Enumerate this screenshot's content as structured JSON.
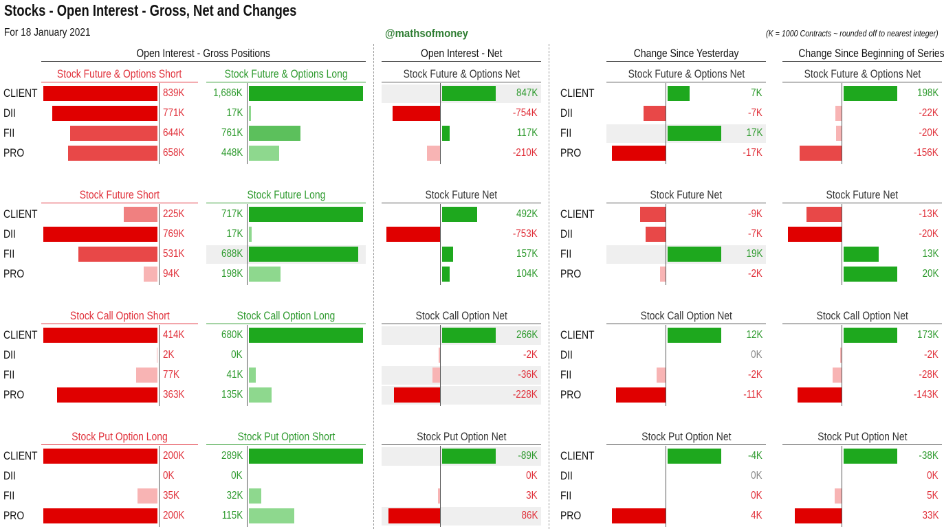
{
  "header": {
    "title": "Stocks - Open Interest - Gross, Net and Changes",
    "date": "For 18 January 2021",
    "brand": "@mathsofmoney",
    "note": "(K = 1000 Contracts ~ rounded off to nearest integer)"
  },
  "sections": {
    "gross": "Open Interest - Gross Positions",
    "net": "Open Interest - Net",
    "change_yesterday": "Change Since Yesterday",
    "change_series": "Change Since Beginning of Series"
  },
  "colors": {
    "red_strong": "#e00000",
    "red_mid": "#e84848",
    "red_light": "#f08080",
    "red_pale": "#f8b4b4",
    "green_strong": "#1ea81e",
    "green_mid": "#5cc05c",
    "green_light": "#8ed88e",
    "val_red": "#e0303a",
    "val_green": "#2e9a2e",
    "val_gray": "#888888"
  },
  "participants": [
    "CLIENT",
    "DII",
    "FII",
    "PRO"
  ],
  "chart_data": [
    {
      "type": "bar",
      "group": "Stock Future & Options",
      "categories": [
        "CLIENT",
        "DII",
        "FII",
        "PRO"
      ],
      "short_title": "Stock Future & Options Short",
      "short": [
        839,
        771,
        644,
        658
      ],
      "short_labels": [
        "839K",
        "771K",
        "644K",
        "658K"
      ],
      "long_title": "Stock Future & Options Long",
      "long": [
        1686,
        17,
        761,
        448
      ],
      "long_labels": [
        "1,686K",
        "17K",
        "761K",
        "448K"
      ],
      "net_title": "Stock Future & Options Net",
      "net": [
        847,
        -754,
        117,
        -210
      ],
      "net_labels": [
        "847K",
        "-754K",
        "117K",
        "-210K"
      ],
      "chg_title": "Stock Future & Options Net",
      "chg": [
        7,
        -7,
        17,
        -17
      ],
      "chg_labels": [
        "7K",
        "-7K",
        "17K",
        "-17K"
      ],
      "ser_title": "Stock Future & Options Net",
      "ser": [
        198,
        -22,
        -20,
        -156
      ],
      "ser_labels": [
        "198K",
        "-22K",
        "-20K",
        "-156K"
      ],
      "highlights": {
        "net": [
          0
        ],
        "chg": [
          2
        ],
        "ser": []
      }
    },
    {
      "type": "bar",
      "group": "Stock Future",
      "categories": [
        "CLIENT",
        "DII",
        "FII",
        "PRO"
      ],
      "short_title": "Stock Future Short",
      "short": [
        225,
        769,
        531,
        94
      ],
      "short_labels": [
        "225K",
        "769K",
        "531K",
        "94K"
      ],
      "long_title": "Stock Future Long",
      "long": [
        717,
        17,
        688,
        198
      ],
      "long_labels": [
        "717K",
        "17K",
        "688K",
        "198K"
      ],
      "net_title": "Stock Future Net",
      "net": [
        492,
        -753,
        157,
        104
      ],
      "net_labels": [
        "492K",
        "-753K",
        "157K",
        "104K"
      ],
      "chg_title": "Stock Future Net",
      "chg": [
        -9,
        -7,
        19,
        -2
      ],
      "chg_labels": [
        "-9K",
        "-7K",
        "19K",
        "-2K"
      ],
      "ser_title": "Stock Future Net",
      "ser": [
        -13,
        -20,
        13,
        20
      ],
      "ser_labels": [
        "-13K",
        "-20K",
        "13K",
        "20K"
      ],
      "highlights": {
        "long": [
          2
        ],
        "net": [],
        "chg": [
          2
        ],
        "ser": []
      }
    },
    {
      "type": "bar",
      "group": "Stock Call Option",
      "categories": [
        "CLIENT",
        "DII",
        "FII",
        "PRO"
      ],
      "short_title": "Stock Call Option Short",
      "short": [
        414,
        2,
        77,
        363
      ],
      "short_labels": [
        "414K",
        "2K",
        "77K",
        "363K"
      ],
      "long_title": "Stock Call Option Long",
      "long": [
        680,
        0,
        41,
        135
      ],
      "long_labels": [
        "680K",
        "0K",
        "41K",
        "135K"
      ],
      "net_title": "Stock Call Option Net",
      "net": [
        266,
        -2,
        -36,
        -228
      ],
      "net_labels": [
        "266K",
        "-2K",
        "-36K",
        "-228K"
      ],
      "chg_title": "Stock Call Option Net",
      "chg": [
        12,
        0,
        -2,
        -11
      ],
      "chg_labels": [
        "12K",
        "0K",
        "-2K",
        "-11K"
      ],
      "ser_title": "Stock Call Option Net",
      "ser": [
        173,
        -2,
        -28,
        -143
      ],
      "ser_labels": [
        "173K",
        "-2K",
        "-28K",
        "-143K"
      ],
      "highlights": {
        "net": [
          0,
          2,
          3
        ],
        "chg": [],
        "ser": []
      }
    },
    {
      "type": "bar",
      "group": "Stock Put Option",
      "categories": [
        "CLIENT",
        "DII",
        "FII",
        "PRO"
      ],
      "short_title": "Stock Put Option Long",
      "short": [
        200,
        0,
        35,
        200
      ],
      "short_labels": [
        "200K",
        "0K",
        "35K",
        "200K"
      ],
      "long_title": "Stock Put Option Short",
      "long": [
        289,
        0,
        32,
        115
      ],
      "long_labels": [
        "289K",
        "0K",
        "32K",
        "115K"
      ],
      "net_title": "Stock Put Option Net",
      "net": [
        -89,
        0,
        3,
        86
      ],
      "net_labels": [
        "-89K",
        "0K",
        "3K",
        "86K"
      ],
      "net_colors": [
        "green",
        "red",
        "red",
        "red"
      ],
      "chg_title": "Stock Put Option Net",
      "chg": [
        -4,
        0,
        0,
        4
      ],
      "chg_labels": [
        "-4K",
        "0K",
        "0K",
        "4K"
      ],
      "chg_colors": [
        "green",
        "gray",
        "red",
        "red"
      ],
      "ser_title": "Stock Put Option Net",
      "ser": [
        -38,
        0,
        5,
        33
      ],
      "ser_labels": [
        "-38K",
        "0K",
        "5K",
        "33K"
      ],
      "ser_colors": [
        "green",
        "red",
        "red",
        "red"
      ],
      "highlights": {
        "net": [
          0,
          3
        ],
        "chg": [],
        "ser": []
      }
    }
  ]
}
